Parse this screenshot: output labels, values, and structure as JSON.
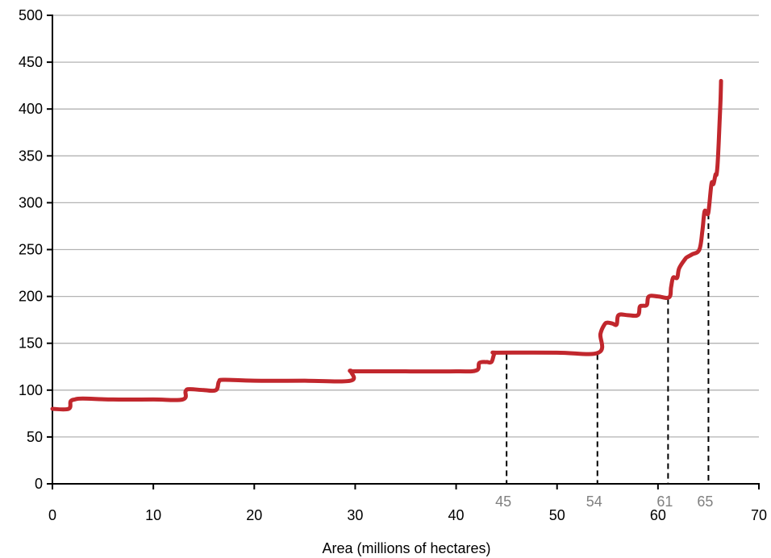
{
  "chart_data": {
    "type": "line",
    "title": "",
    "xlabel": "Area (millions of hectares)",
    "ylabel": "",
    "xlim": [
      0,
      70
    ],
    "ylim": [
      0,
      500
    ],
    "x_ticks": [
      0,
      10,
      20,
      30,
      40,
      50,
      60,
      70
    ],
    "y_ticks": [
      0,
      50,
      100,
      150,
      200,
      250,
      300,
      350,
      400,
      450,
      500
    ],
    "grid": "horizontal",
    "colors": {
      "line": "#C1272D",
      "grid": "#b3b3b3",
      "marker_label": "#808080"
    },
    "series": [
      {
        "values_x": [
          0,
          1.6,
          1.8,
          2.2,
          3,
          6,
          10,
          12.9,
          13.2,
          13.6,
          15,
          16.2,
          16.5,
          17,
          20,
          25,
          29.5,
          29.6,
          30,
          35,
          40,
          42,
          42.3,
          43,
          43.5,
          43.8,
          44.2,
          50,
          54.1,
          54.3,
          54.7,
          55,
          55.5,
          55.9,
          56.1,
          57,
          58,
          58.2,
          58.5,
          58.9,
          59.1,
          60,
          61.1,
          61.3,
          61.5,
          61.9,
          62.1,
          62.7,
          62.9,
          63.4,
          64.1,
          64.4,
          64.6,
          64.8,
          65.0,
          65.3,
          65.5,
          65.7,
          65.8,
          65.9,
          66.0,
          66.1,
          66.2,
          66.25
        ],
        "values_y": [
          80,
          80,
          88,
          90,
          91,
          90,
          90,
          90,
          99,
          101,
          100,
          100,
          109,
          111,
          110,
          110,
          110,
          120,
          120,
          120,
          120,
          121,
          129,
          130,
          130,
          139,
          140,
          140,
          140,
          160,
          170,
          172,
          171,
          170,
          180,
          180,
          180,
          189,
          190,
          191,
          200,
          200,
          199,
          210,
          220,
          220,
          230,
          240,
          242,
          245,
          250,
          270,
          290,
          290,
          290,
          320,
          320,
          330,
          330,
          340,
          360,
          385,
          410,
          430
        ]
      }
    ],
    "annotations": [
      {
        "x": 45,
        "label": "45"
      },
      {
        "x": 54,
        "label": "54"
      },
      {
        "x": 61,
        "label": "61"
      },
      {
        "x": 65,
        "label": "65"
      }
    ]
  }
}
